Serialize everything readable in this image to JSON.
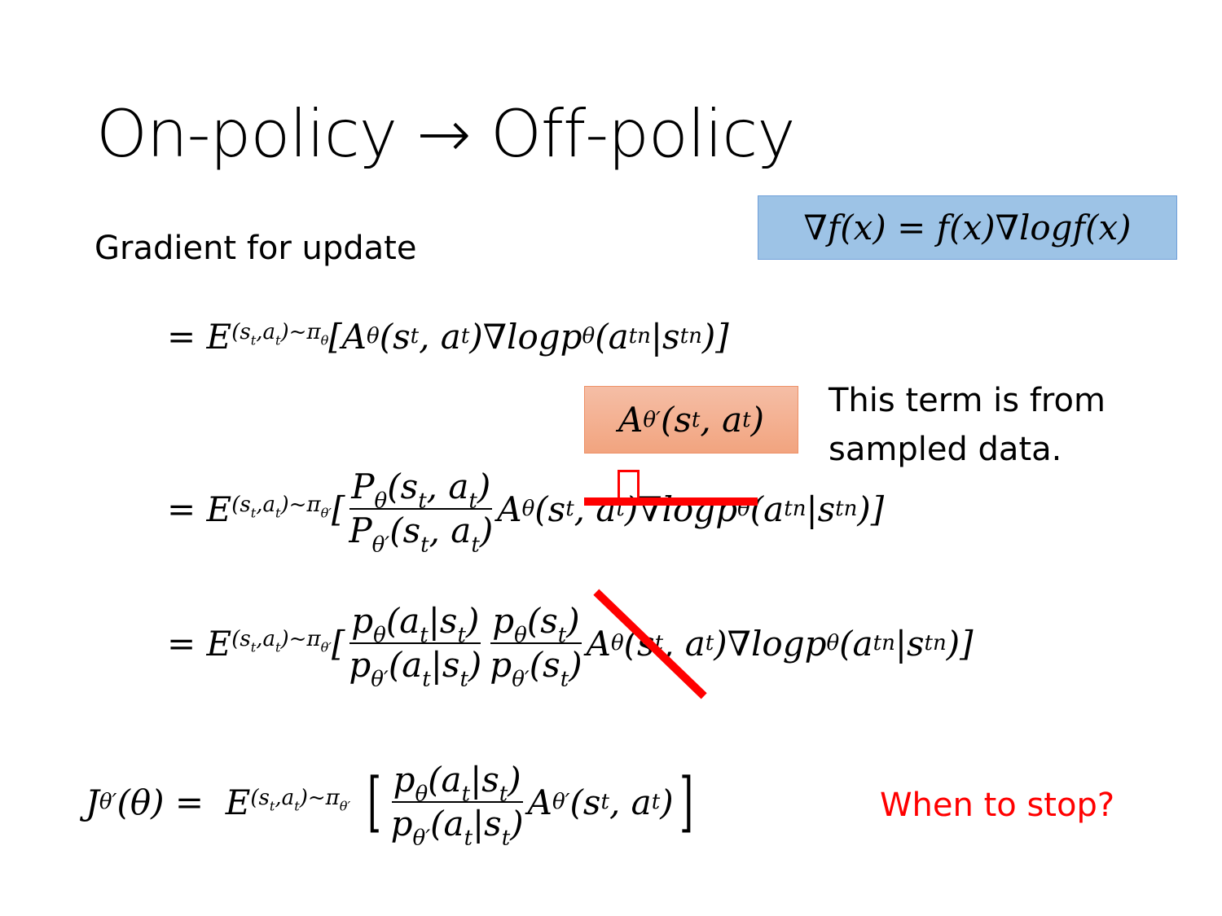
{
  "slide": {
    "title": "On-policy → Off-policy",
    "subtitle": "Gradient for update",
    "note": [
      "This term is from",
      "sampled data."
    ],
    "question": "When to stop?",
    "colors": {
      "blue_box": "#9dc3e6",
      "orange_box": "#f4b096",
      "red": "#ff0000"
    }
  },
  "math": {
    "identity": [
      "∇f(x) = f(x)∇logf(x)"
    ],
    "replacement": [
      "A",
      {
        "sup": [
          "θ′"
        ]
      },
      "(s",
      {
        "sub": [
          "t"
        ]
      },
      ", a",
      {
        "sub": [
          "t"
        ]
      },
      ")"
    ],
    "eq1": [
      "= E",
      {
        "sub": [
          "(s",
          {
            "sub": [
              "t"
            ]
          },
          ",a",
          {
            "sub": [
              "t"
            ]
          },
          ")~π",
          {
            "sub": [
              "θ"
            ]
          }
        ]
      },
      "[A",
      {
        "sup": [
          "θ"
        ]
      },
      "(s",
      {
        "sub": [
          "t"
        ]
      },
      ", a",
      {
        "sub": [
          "t"
        ]
      },
      ")∇logp",
      {
        "sub": [
          "θ"
        ]
      },
      "(a",
      {
        "sub": [
          "t"
        ]
      },
      {
        "sup": [
          "n"
        ]
      },
      "|s",
      {
        "sub": [
          "t"
        ]
      },
      {
        "sup": [
          "n"
        ]
      },
      ")]"
    ],
    "eq2": [
      "= E",
      {
        "sub": [
          "(s",
          {
            "sub": [
              "t"
            ]
          },
          ",a",
          {
            "sub": [
              "t"
            ]
          },
          ")~π",
          {
            "sub": [
              "θ′"
            ]
          }
        ]
      },
      "[",
      {
        "frac": {
          "num": [
            "P",
            {
              "sub": [
                "θ"
              ]
            },
            "(s",
            {
              "sub": [
                "t"
              ]
            },
            ", a",
            {
              "sub": [
                "t"
              ]
            },
            ")"
          ],
          "den": [
            "P",
            {
              "sub": [
                "θ′"
              ]
            },
            "(s",
            {
              "sub": [
                "t"
              ]
            },
            ", a",
            {
              "sub": [
                "t"
              ]
            },
            ")"
          ]
        }
      },
      "A",
      {
        "sup": [
          "θ"
        ]
      },
      "(s",
      {
        "sub": [
          "t"
        ]
      },
      ", a",
      {
        "sub": [
          "t"
        ]
      },
      ")∇logp",
      {
        "sub": [
          "θ"
        ]
      },
      "(a",
      {
        "sub": [
          "t"
        ]
      },
      {
        "sup": [
          "n"
        ]
      },
      "|s",
      {
        "sub": [
          "t"
        ]
      },
      {
        "sup": [
          "n"
        ]
      },
      ")]"
    ],
    "eq3": [
      "= E",
      {
        "sub": [
          "(s",
          {
            "sub": [
              "t"
            ]
          },
          ",a",
          {
            "sub": [
              "t"
            ]
          },
          ")~π",
          {
            "sub": [
              "θ′"
            ]
          }
        ]
      },
      "[",
      {
        "frac": {
          "num": [
            "p",
            {
              "sub": [
                "θ"
              ]
            },
            "(a",
            {
              "sub": [
                "t"
              ]
            },
            "|s",
            {
              "sub": [
                "t"
              ]
            },
            ")"
          ],
          "den": [
            "p",
            {
              "sub": [
                "θ′"
              ]
            },
            "(a",
            {
              "sub": [
                "t"
              ]
            },
            "|s",
            {
              "sub": [
                "t"
              ]
            },
            ")"
          ]
        }
      },
      {
        "frac": {
          "num": [
            "p",
            {
              "sub": [
                "θ"
              ]
            },
            "(s",
            {
              "sub": [
                "t"
              ]
            },
            ")"
          ],
          "den": [
            "p",
            {
              "sub": [
                "θ′"
              ]
            },
            "(s",
            {
              "sub": [
                "t"
              ]
            },
            ")"
          ]
        }
      },
      "A",
      {
        "sup": [
          "θ"
        ]
      },
      "(s",
      {
        "sub": [
          "t"
        ]
      },
      ", a",
      {
        "sub": [
          "t"
        ]
      },
      ")∇logp",
      {
        "sub": [
          "θ"
        ]
      },
      "(a",
      {
        "sub": [
          "t"
        ]
      },
      {
        "sup": [
          "n"
        ]
      },
      "|s",
      {
        "sub": [
          "t"
        ]
      },
      {
        "sup": [
          "n"
        ]
      },
      ")]"
    ],
    "eq4": [
      "J",
      {
        "sup": [
          "θ′"
        ]
      },
      "(θ) =  E",
      {
        "sub": [
          "(s",
          {
            "sub": [
              "t"
            ]
          },
          ",a",
          {
            "sub": [
              "t"
            ]
          },
          ")~π",
          {
            "sub": [
              "θ′"
            ]
          }
        ]
      },
      " ",
      {
        "bracket": "["
      },
      {
        "frac": {
          "num": [
            "p",
            {
              "sub": [
                "θ"
              ]
            },
            "(a",
            {
              "sub": [
                "t"
              ]
            },
            "|s",
            {
              "sub": [
                "t"
              ]
            },
            ")"
          ],
          "den": [
            "p",
            {
              "sub": [
                "θ′"
              ]
            },
            "(a",
            {
              "sub": [
                "t"
              ]
            },
            "|s",
            {
              "sub": [
                "t"
              ]
            },
            ")"
          ]
        }
      },
      "A",
      {
        "sup": [
          "θ′"
        ]
      },
      "(s",
      {
        "sub": [
          "t"
        ]
      },
      ", a",
      {
        "sub": [
          "t"
        ]
      },
      ")",
      {
        "bracket": "]"
      }
    ]
  }
}
